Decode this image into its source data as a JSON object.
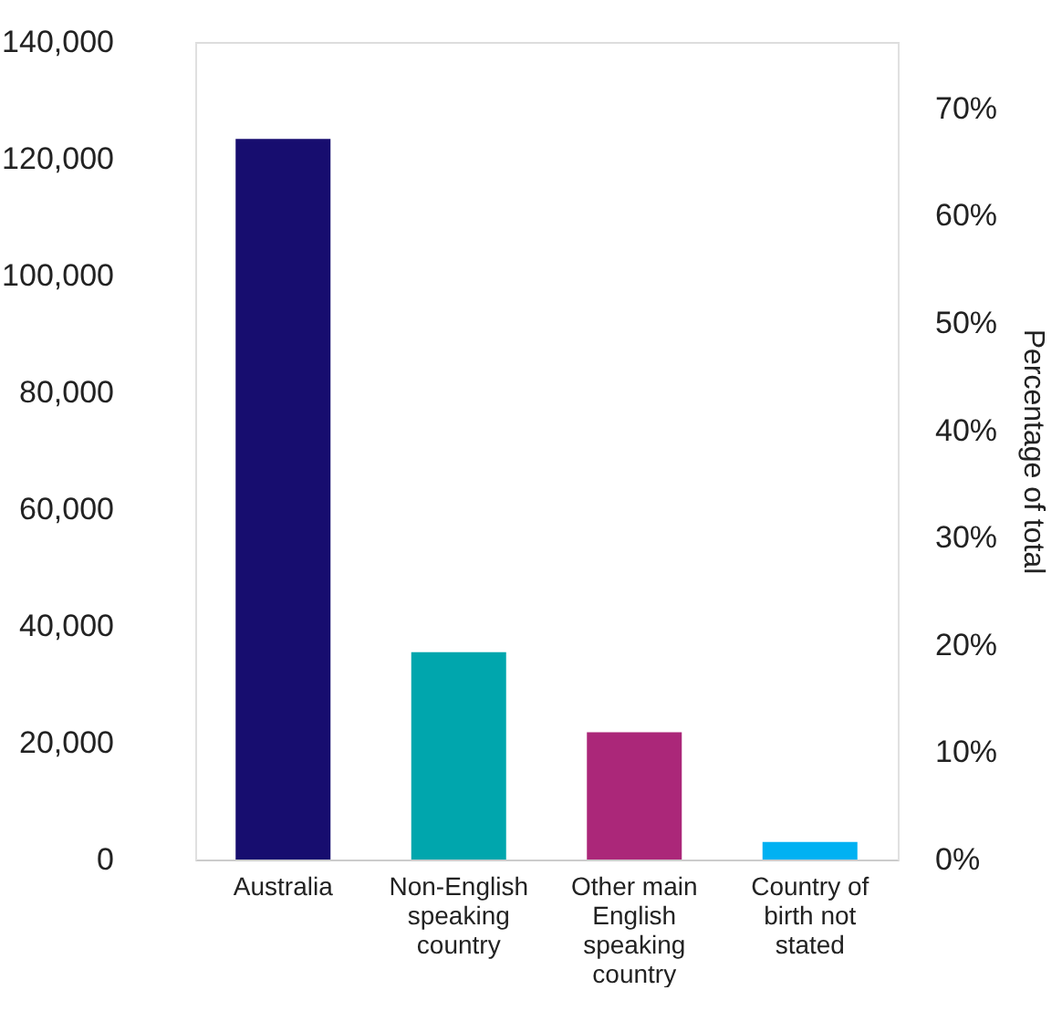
{
  "chart_data": {
    "type": "bar",
    "categories": [
      "Australia",
      "Non-English speaking country",
      "Other main English speaking country",
      "Country of birth not stated"
    ],
    "values": [
      123400,
      35500,
      21800,
      3000
    ],
    "colors": [
      "#170d6f",
      "#00a6ad",
      "#ab2779",
      "#00b1f2"
    ],
    "ylim": [
      0,
      140000
    ],
    "yticks": [
      {
        "value": 0,
        "label": "0"
      },
      {
        "value": 20000,
        "label": "20,000"
      },
      {
        "value": 40000,
        "label": "40,000"
      },
      {
        "value": 60000,
        "label": "60,000"
      },
      {
        "value": 80000,
        "label": "80,000"
      },
      {
        "value": 100000,
        "label": "100,000"
      },
      {
        "value": 120000,
        "label": "120,000"
      },
      {
        "value": 140000,
        "label": "140,000"
      }
    ],
    "y2label": "Percentage of total",
    "y2lim": [
      0,
      76.2
    ],
    "y2ticks": [
      {
        "value": 0,
        "label": "0%"
      },
      {
        "value": 10,
        "label": "10%"
      },
      {
        "value": 20,
        "label": "20%"
      },
      {
        "value": 30,
        "label": "30%"
      },
      {
        "value": 40,
        "label": "40%"
      },
      {
        "value": 50,
        "label": "50%"
      },
      {
        "value": 60,
        "label": "60%"
      },
      {
        "value": 70,
        "label": "70%"
      }
    ],
    "grid": false
  }
}
